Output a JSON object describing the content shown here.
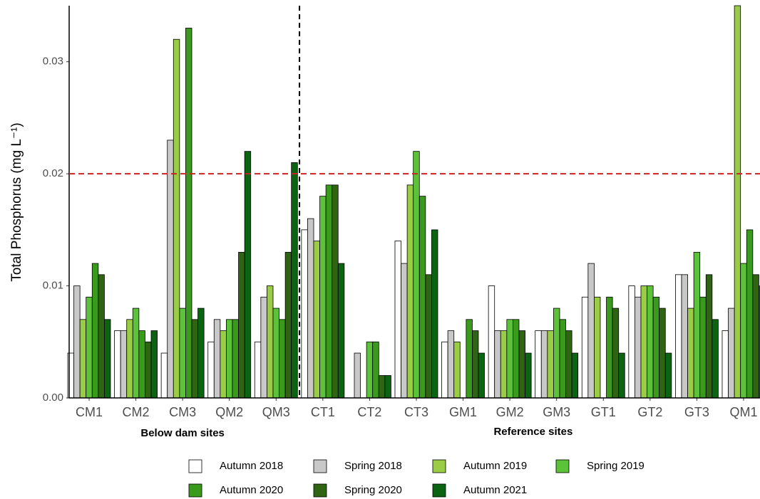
{
  "chart_data": {
    "type": "bar",
    "y_label": "Total Phosphorus (mg L⁻¹)",
    "categories": [
      "CM1",
      "CM2",
      "CM3",
      "QM2",
      "QM3",
      "CT1",
      "CT2",
      "CT3",
      "GM1",
      "GM2",
      "GM3",
      "GT1",
      "GT2",
      "GT3",
      "QM1"
    ],
    "annotations": [
      "Below dam sites",
      "Reference sites"
    ],
    "hline": 0.02,
    "hline_color": "#cc2222",
    "ylim": [
      0,
      0.035
    ],
    "yticks": [
      {
        "value": 0,
        "label": "0.00"
      },
      0.01,
      0.02,
      0.03
    ],
    "grid": false,
    "legend": "bottom",
    "series": [
      {
        "name": "Autumn 2018",
        "color": "#ffffff",
        "values": [
          0.004,
          0.006,
          0.004,
          0.005,
          0.005,
          0.015,
          null,
          0.014,
          0.005,
          0.01,
          0.006,
          0.009,
          0.01,
          0.011,
          0.006
        ]
      },
      {
        "name": "Spring 2018",
        "color": "#c8c8c8",
        "values": [
          0.01,
          0.006,
          0.023,
          0.007,
          0.009,
          0.016,
          0.004,
          0.012,
          0.006,
          0.006,
          0.006,
          0.012,
          0.009,
          0.011,
          0.008
        ]
      },
      {
        "name": "Autumn 2019",
        "color": "#9acd45",
        "values": [
          0.007,
          0.007,
          0.032,
          0.006,
          0.01,
          0.014,
          null,
          0.019,
          0.005,
          0.006,
          0.006,
          0.009,
          0.01,
          0.008,
          0.035
        ]
      },
      {
        "name": "Spring 2019",
        "color": "#5cc23a",
        "values": [
          0.009,
          0.008,
          0.008,
          0.007,
          0.008,
          0.018,
          0.005,
          0.022,
          null,
          0.007,
          0.008,
          null,
          0.01,
          0.013,
          0.012
        ]
      },
      {
        "name": "Autumn 2020",
        "color": "#3a9a1c",
        "values": [
          0.012,
          0.006,
          0.033,
          0.007,
          0.007,
          0.019,
          0.005,
          0.018,
          0.007,
          0.007,
          0.007,
          0.009,
          0.009,
          0.009,
          0.015
        ]
      },
      {
        "name": "Spring 2020",
        "color": "#2f6512",
        "values": [
          0.011,
          0.005,
          0.007,
          0.013,
          0.013,
          0.019,
          0.002,
          0.011,
          0.006,
          0.006,
          0.006,
          0.008,
          0.008,
          0.011,
          0.011
        ]
      },
      {
        "name": "Autumn 2021",
        "color": "#0b6412",
        "values": [
          0.007,
          0.006,
          0.008,
          0.022,
          0.021,
          0.012,
          0.002,
          0.015,
          0.004,
          0.004,
          0.004,
          0.004,
          0.004,
          0.007,
          0.01
        ]
      }
    ]
  }
}
